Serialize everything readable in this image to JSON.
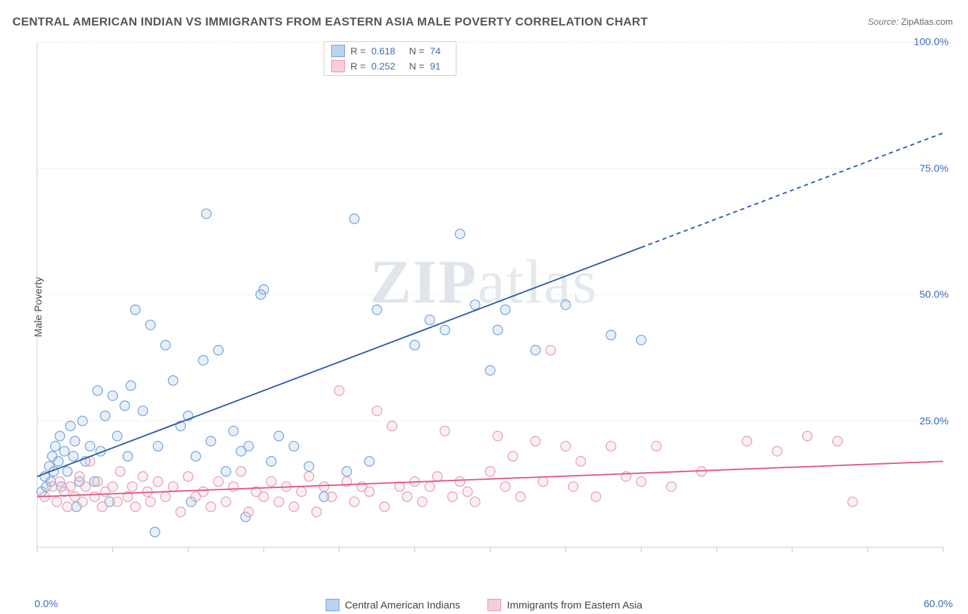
{
  "title": "CENTRAL AMERICAN INDIAN VS IMMIGRANTS FROM EASTERN ASIA MALE POVERTY CORRELATION CHART",
  "source_label": "Source:",
  "source_value": "ZipAtlas.com",
  "ylabel": "Male Poverty",
  "watermark_a": "ZIP",
  "watermark_b": "atlas",
  "chart": {
    "type": "scatter",
    "background_color": "#ffffff",
    "grid_color": "#e7e7e7",
    "axis_line_color": "#cccccc",
    "tick_color": "#bfbfbf",
    "xlim": [
      0,
      60
    ],
    "ylim": [
      0,
      100
    ],
    "xtick_step": 5,
    "ytick_step": 25,
    "ytick_labels": [
      "25.0%",
      "50.0%",
      "75.0%",
      "100.0%"
    ],
    "xlabel_min": "0.0%",
    "xlabel_max": "60.0%",
    "marker_radius": 7,
    "marker_stroke_width": 1.2,
    "marker_fill_opacity": 0.28,
    "line_width": 2,
    "series": [
      {
        "id": "blue",
        "name": "Central American Indians",
        "color_stroke": "#6fa1d9",
        "color_fill": "#a9c7ea",
        "line_color": "#2f5fa8",
        "swatch_fill": "#bcd3ef",
        "swatch_border": "#6fa1d9",
        "R": "0.618",
        "N": "74",
        "trend": {
          "x1": 0,
          "y1": 14,
          "x2": 60,
          "y2": 82
        },
        "dash_from_x": 40,
        "points": [
          [
            0.3,
            11
          ],
          [
            0.5,
            14
          ],
          [
            0.6,
            12
          ],
          [
            0.8,
            16
          ],
          [
            0.9,
            13
          ],
          [
            1.0,
            18
          ],
          [
            1.1,
            15
          ],
          [
            1.2,
            20
          ],
          [
            1.4,
            17
          ],
          [
            1.5,
            22
          ],
          [
            1.6,
            12
          ],
          [
            1.8,
            19
          ],
          [
            2.0,
            15
          ],
          [
            2.2,
            24
          ],
          [
            2.4,
            18
          ],
          [
            2.5,
            21
          ],
          [
            2.8,
            13
          ],
          [
            3.0,
            25
          ],
          [
            3.2,
            17
          ],
          [
            3.5,
            20
          ],
          [
            4.0,
            31
          ],
          [
            4.2,
            19
          ],
          [
            4.5,
            26
          ],
          [
            5.0,
            30
          ],
          [
            5.3,
            22
          ],
          [
            5.8,
            28
          ],
          [
            3.8,
            13
          ],
          [
            6.0,
            18
          ],
          [
            6.2,
            32
          ],
          [
            7.0,
            27
          ],
          [
            6.5,
            47
          ],
          [
            7.5,
            44
          ],
          [
            8.0,
            20
          ],
          [
            8.5,
            40
          ],
          [
            9.0,
            33
          ],
          [
            9.5,
            24
          ],
          [
            10.0,
            26
          ],
          [
            10.5,
            18
          ],
          [
            11.0,
            37
          ],
          [
            11.5,
            21
          ],
          [
            12.0,
            39
          ],
          [
            12.5,
            15
          ],
          [
            11.2,
            66
          ],
          [
            13.0,
            23
          ],
          [
            13.5,
            19
          ],
          [
            14.0,
            20
          ],
          [
            15.0,
            51
          ],
          [
            15.5,
            17
          ],
          [
            16.0,
            22
          ],
          [
            17.0,
            20
          ],
          [
            18.0,
            16
          ],
          [
            19.0,
            10
          ],
          [
            14.8,
            50
          ],
          [
            20.5,
            15
          ],
          [
            21.0,
            65
          ],
          [
            22.0,
            17
          ],
          [
            22.5,
            47
          ],
          [
            25.0,
            40
          ],
          [
            26.0,
            45
          ],
          [
            27.0,
            43
          ],
          [
            28.0,
            62
          ],
          [
            29.0,
            48
          ],
          [
            30.0,
            35
          ],
          [
            30.5,
            43
          ],
          [
            31.0,
            47
          ],
          [
            33.0,
            39
          ],
          [
            35.0,
            48
          ],
          [
            38.0,
            42
          ],
          [
            40.0,
            41
          ],
          [
            7.8,
            3
          ],
          [
            10.2,
            9
          ],
          [
            4.8,
            9
          ],
          [
            13.8,
            6
          ],
          [
            2.6,
            8
          ]
        ]
      },
      {
        "id": "pink",
        "name": "Immigrants from Eastern Asia",
        "color_stroke": "#e49aae",
        "color_fill": "#f4c5d1",
        "line_color": "#e05a86",
        "swatch_fill": "#f7cdd8",
        "swatch_border": "#e49aae",
        "R": "0.252",
        "N": "91",
        "trend": {
          "x1": 0,
          "y1": 10,
          "x2": 60,
          "y2": 17
        },
        "dash_from_x": 60,
        "points": [
          [
            0.5,
            10
          ],
          [
            1.0,
            12
          ],
          [
            1.3,
            9
          ],
          [
            1.5,
            13
          ],
          [
            1.8,
            11
          ],
          [
            2.0,
            8
          ],
          [
            2.2,
            12
          ],
          [
            2.5,
            10
          ],
          [
            2.8,
            14
          ],
          [
            3.0,
            9
          ],
          [
            3.2,
            12
          ],
          [
            3.5,
            17
          ],
          [
            3.8,
            10
          ],
          [
            4.0,
            13
          ],
          [
            4.3,
            8
          ],
          [
            4.5,
            11
          ],
          [
            5.0,
            12
          ],
          [
            5.3,
            9
          ],
          [
            5.5,
            15
          ],
          [
            6.0,
            10
          ],
          [
            6.3,
            12
          ],
          [
            6.5,
            8
          ],
          [
            7.0,
            14
          ],
          [
            7.3,
            11
          ],
          [
            7.5,
            9
          ],
          [
            8.0,
            13
          ],
          [
            8.5,
            10
          ],
          [
            9.0,
            12
          ],
          [
            9.5,
            7
          ],
          [
            10.0,
            14
          ],
          [
            10.5,
            10
          ],
          [
            11.0,
            11
          ],
          [
            11.5,
            8
          ],
          [
            12.0,
            13
          ],
          [
            12.5,
            9
          ],
          [
            13.0,
            12
          ],
          [
            13.5,
            15
          ],
          [
            14.0,
            7
          ],
          [
            14.5,
            11
          ],
          [
            15.0,
            10
          ],
          [
            15.5,
            13
          ],
          [
            16.0,
            9
          ],
          [
            16.5,
            12
          ],
          [
            17.0,
            8
          ],
          [
            17.5,
            11
          ],
          [
            18.0,
            14
          ],
          [
            18.5,
            7
          ],
          [
            19.0,
            12
          ],
          [
            19.5,
            10
          ],
          [
            20.0,
            31
          ],
          [
            20.5,
            13
          ],
          [
            21.0,
            9
          ],
          [
            21.5,
            12
          ],
          [
            22.0,
            11
          ],
          [
            22.5,
            27
          ],
          [
            23.0,
            8
          ],
          [
            23.5,
            24
          ],
          [
            24.0,
            12
          ],
          [
            24.5,
            10
          ],
          [
            25.0,
            13
          ],
          [
            25.5,
            9
          ],
          [
            26.0,
            12
          ],
          [
            26.5,
            14
          ],
          [
            27.0,
            23
          ],
          [
            27.5,
            10
          ],
          [
            28.0,
            13
          ],
          [
            28.5,
            11
          ],
          [
            29.0,
            9
          ],
          [
            30.0,
            15
          ],
          [
            30.5,
            22
          ],
          [
            31.0,
            12
          ],
          [
            31.5,
            18
          ],
          [
            32.0,
            10
          ],
          [
            33.0,
            21
          ],
          [
            33.5,
            13
          ],
          [
            34.0,
            39
          ],
          [
            35.0,
            20
          ],
          [
            35.5,
            12
          ],
          [
            36.0,
            17
          ],
          [
            37.0,
            10
          ],
          [
            38.0,
            20
          ],
          [
            39.0,
            14
          ],
          [
            40.0,
            13
          ],
          [
            41.0,
            20
          ],
          [
            42.0,
            12
          ],
          [
            44.0,
            15
          ],
          [
            47.0,
            21
          ],
          [
            49.0,
            19
          ],
          [
            51.0,
            22
          ],
          [
            53.0,
            21
          ],
          [
            54.0,
            9
          ]
        ]
      }
    ]
  },
  "stats_legend": {
    "R_label": "R =",
    "N_label": "N ="
  }
}
